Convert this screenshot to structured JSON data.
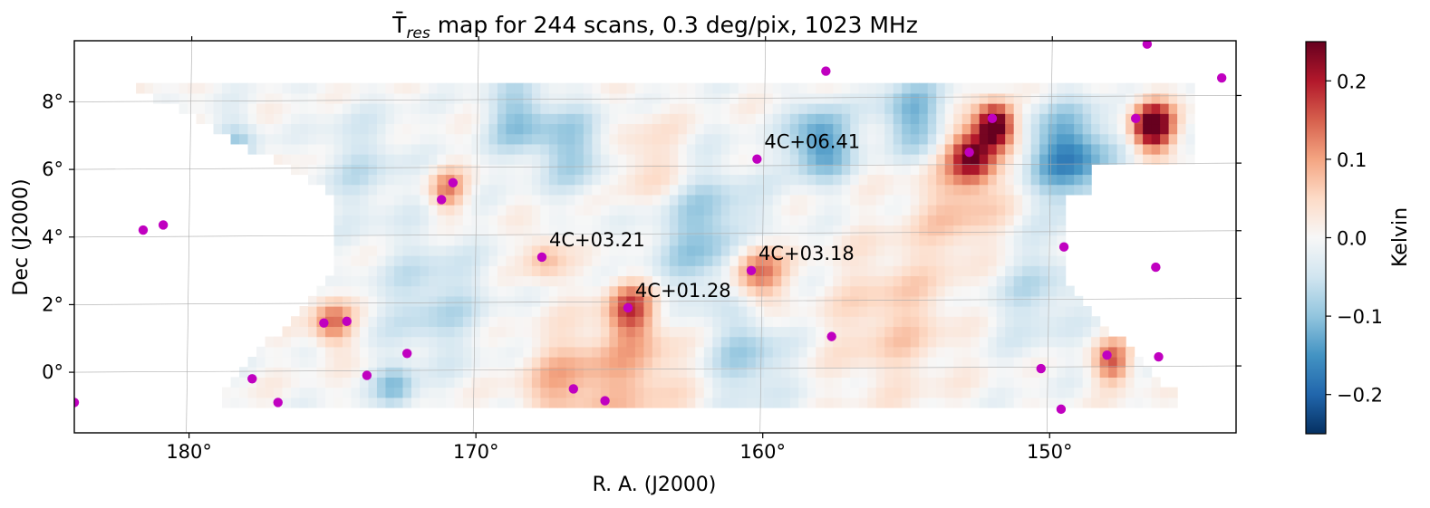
{
  "chart_data": {
    "type": "heatmap",
    "title_symbol": "T̄",
    "title_subscript": "res",
    "title_rest": " map for 244 scans, 0.3 deg/pix, 1023 MHz",
    "xlabel": "R. A. (J2000)",
    "ylabel": "Dec (J2000)",
    "colorbar_label": "Kelvin",
    "xlim": [
      184,
      143.5
    ],
    "ylim": [
      -1.9,
      9.7
    ],
    "x_ticks": [
      180,
      170,
      160,
      150
    ],
    "x_tick_labels": [
      "180°",
      "170°",
      "160°",
      "150°"
    ],
    "y_ticks": [
      0,
      2,
      4,
      6,
      8
    ],
    "y_tick_labels": [
      "0°",
      "2°",
      "4°",
      "6°",
      "8°"
    ],
    "clim": [
      -0.25,
      0.25
    ],
    "colorbar_ticks": [
      0.2,
      0.1,
      0.0,
      -0.1,
      -0.2
    ],
    "colorbar_tick_labels": [
      "0.2",
      "0.1",
      "0.0",
      "−0.1",
      "−0.2"
    ],
    "colormap": [
      "#053061",
      "#2166ac",
      "#4393c3",
      "#92c5de",
      "#d1e5f0",
      "#f7f7f7",
      "#fddbc7",
      "#f4a582",
      "#d6604d",
      "#b2182b",
      "#67001f"
    ],
    "pixel_deg": 0.3,
    "hotspots": [
      {
        "ra": 167.6,
        "dec": 3.3,
        "amp": 0.08,
        "r": 0.5
      },
      {
        "ra": 164.6,
        "dec": 1.8,
        "amp": 0.15,
        "r": 0.55
      },
      {
        "ra": 160.2,
        "dec": 2.9,
        "amp": 0.17,
        "r": 0.65
      },
      {
        "ra": 171.0,
        "dec": 5.3,
        "amp": 0.12,
        "r": 0.45
      },
      {
        "ra": 175.0,
        "dec": 1.4,
        "amp": 0.14,
        "r": 0.5
      },
      {
        "ra": 152.7,
        "dec": 6.3,
        "amp": 0.22,
        "r": 0.55
      },
      {
        "ra": 153.0,
        "dec": 4.8,
        "amp": 0.07,
        "r": 1.2
      },
      {
        "ra": 151.9,
        "dec": 7.2,
        "amp": 0.3,
        "r": 0.45
      },
      {
        "ra": 146.4,
        "dec": 7.2,
        "amp": 0.3,
        "r": 0.5
      },
      {
        "ra": 147.8,
        "dec": 0.2,
        "amp": 0.15,
        "r": 0.45
      },
      {
        "ra": 164.0,
        "dec": 6.0,
        "amp": 0.06,
        "r": 1.0
      },
      {
        "ra": 164.5,
        "dec": 0.0,
        "amp": 0.08,
        "r": 1.3
      },
      {
        "ra": 155.5,
        "dec": 1.5,
        "amp": 0.06,
        "r": 1.5
      },
      {
        "ra": 167.0,
        "dec": -0.5,
        "amp": 0.08,
        "r": 1.0
      },
      {
        "ra": 177.5,
        "dec": 5.0,
        "amp": 0.05,
        "r": 1.0
      },
      {
        "ra": 158.0,
        "dec": 6.7,
        "amp": -0.16,
        "r": 0.75
      },
      {
        "ra": 149.3,
        "dec": 6.3,
        "amp": -0.17,
        "r": 1.0
      },
      {
        "ra": 154.8,
        "dec": 7.5,
        "amp": -0.12,
        "r": 0.8
      },
      {
        "ra": 168.5,
        "dec": 7.4,
        "amp": -0.1,
        "r": 0.8
      },
      {
        "ra": 178.3,
        "dec": 6.6,
        "amp": -0.09,
        "r": 0.6
      },
      {
        "ra": 162.0,
        "dec": 4.0,
        "amp": -0.1,
        "r": 1.4
      },
      {
        "ra": 160.5,
        "dec": 0.3,
        "amp": -0.08,
        "r": 1.0
      },
      {
        "ra": 171.5,
        "dec": 2.0,
        "amp": -0.07,
        "r": 1.3
      },
      {
        "ra": 166.5,
        "dec": 6.5,
        "amp": -0.09,
        "r": 0.9
      },
      {
        "ra": 172.8,
        "dec": -0.6,
        "amp": -0.1,
        "r": 0.5
      },
      {
        "ra": 150.5,
        "dec": 2.3,
        "amp": -0.06,
        "r": 1.2
      },
      {
        "ra": 174.0,
        "dec": 6.0,
        "amp": -0.05,
        "r": 1.2
      }
    ],
    "sources": [
      {
        "ra": 184.0,
        "dec": -1.0
      },
      {
        "ra": 181.6,
        "dec": 4.1
      },
      {
        "ra": 180.9,
        "dec": 4.25
      },
      {
        "ra": 177.8,
        "dec": -0.3
      },
      {
        "ra": 176.9,
        "dec": -1.0
      },
      {
        "ra": 175.3,
        "dec": 1.35
      },
      {
        "ra": 174.5,
        "dec": 1.4
      },
      {
        "ra": 173.8,
        "dec": -0.2
      },
      {
        "ra": 172.4,
        "dec": 0.45
      },
      {
        "ra": 171.2,
        "dec": 5.0
      },
      {
        "ra": 170.8,
        "dec": 5.5
      },
      {
        "ra": 167.7,
        "dec": 3.3
      },
      {
        "ra": 166.6,
        "dec": -0.6
      },
      {
        "ra": 165.5,
        "dec": -0.95
      },
      {
        "ra": 164.7,
        "dec": 1.8
      },
      {
        "ra": 160.4,
        "dec": 2.9
      },
      {
        "ra": 160.2,
        "dec": 6.2
      },
      {
        "ra": 157.8,
        "dec": 8.8
      },
      {
        "ra": 157.6,
        "dec": 0.95
      },
      {
        "ra": 152.8,
        "dec": 6.4
      },
      {
        "ra": 152.0,
        "dec": 7.4
      },
      {
        "ra": 150.3,
        "dec": 0.0
      },
      {
        "ra": 149.6,
        "dec": -1.2
      },
      {
        "ra": 149.5,
        "dec": 3.6
      },
      {
        "ra": 148.0,
        "dec": 0.4
      },
      {
        "ra": 147.0,
        "dec": 7.4
      },
      {
        "ra": 146.6,
        "dec": 9.6
      },
      {
        "ra": 146.3,
        "dec": 3.0
      },
      {
        "ra": 146.2,
        "dec": 0.35
      },
      {
        "ra": 144.0,
        "dec": 8.6
      }
    ],
    "annotations": [
      {
        "label": "4C+06.41",
        "ra": 160.2,
        "dec": 6.2
      },
      {
        "label": "4C+03.21",
        "ra": 167.7,
        "dec": 3.3
      },
      {
        "label": "4C+03.18",
        "ra": 160.4,
        "dec": 2.9
      },
      {
        "label": "4C+01.28",
        "ra": 164.7,
        "dec": 1.8
      }
    ],
    "source_color": "#c000c0"
  }
}
